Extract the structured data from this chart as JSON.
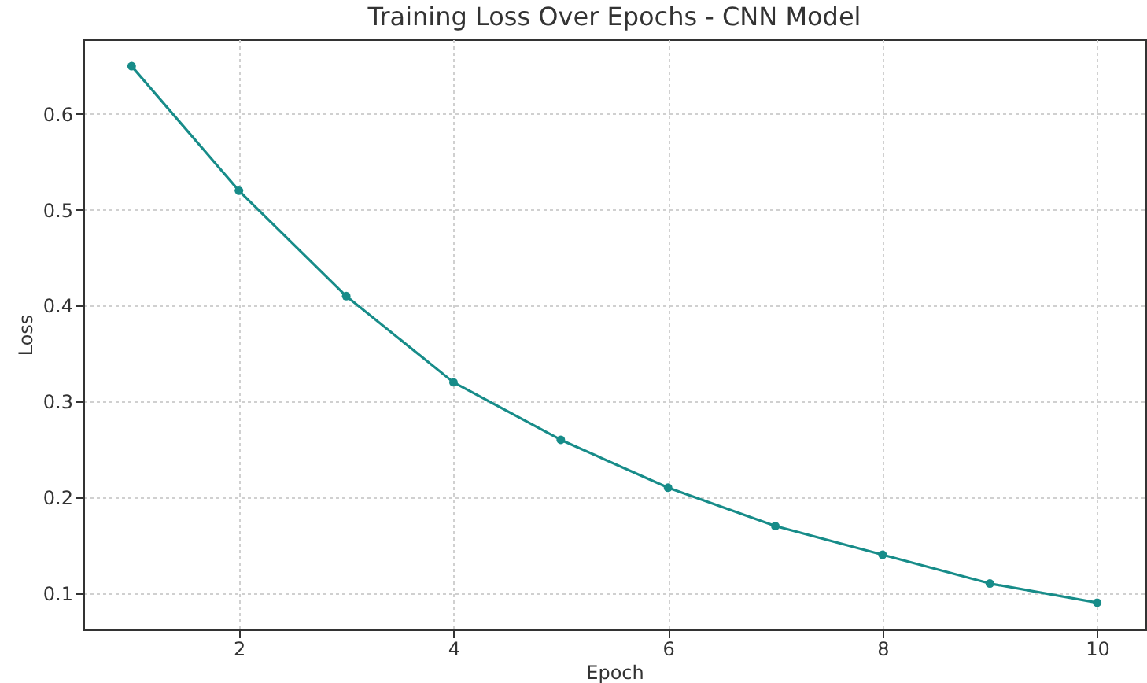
{
  "chart_data": {
    "type": "line",
    "title": "Training Loss Over Epochs - CNN Model",
    "xlabel": "Epoch",
    "ylabel": "Loss",
    "x": [
      1,
      2,
      3,
      4,
      5,
      6,
      7,
      8,
      9,
      10
    ],
    "series": [
      {
        "color": "#178c89",
        "values": [
          0.65,
          0.52,
          0.41,
          0.32,
          0.26,
          0.21,
          0.17,
          0.14,
          0.11,
          0.09
        ]
      }
    ],
    "xlim": [
      0.55,
      10.45
    ],
    "xticks": [
      2,
      4,
      6,
      8,
      10
    ],
    "ylim": [
      0.062,
      0.678
    ],
    "yticks": [
      0.1,
      0.2,
      0.3,
      0.4,
      0.5,
      0.6
    ],
    "grid": true,
    "marker": "circle",
    "line_style": "solid"
  }
}
